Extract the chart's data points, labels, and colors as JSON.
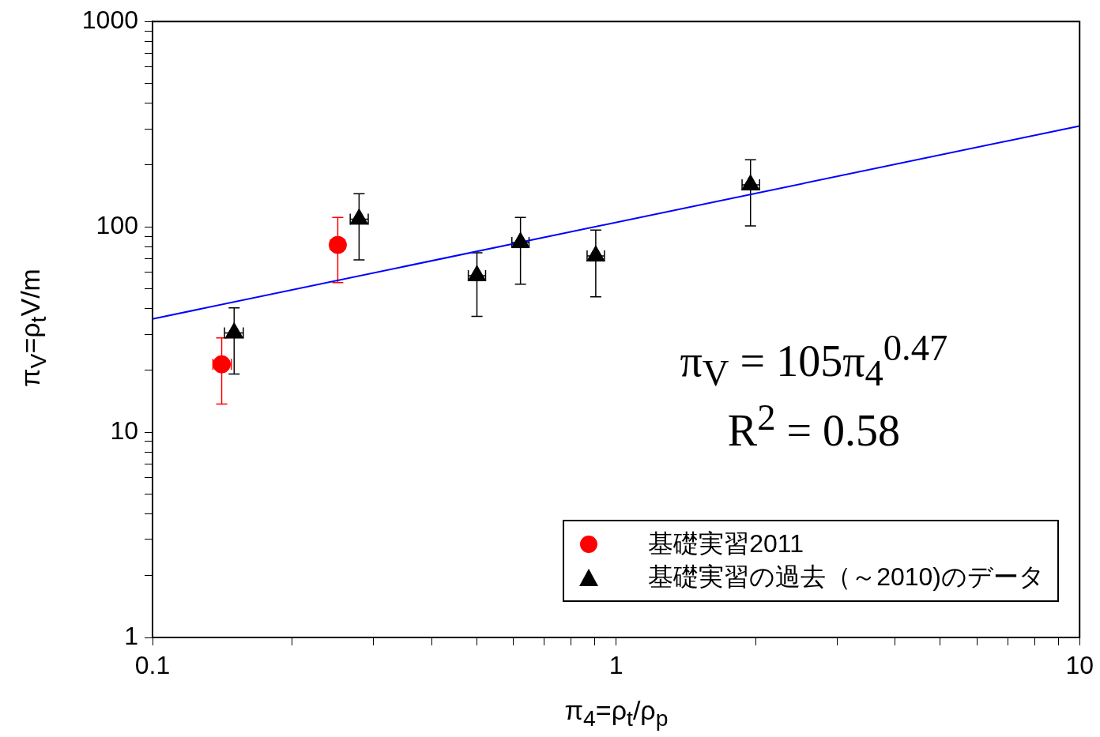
{
  "chart_data": {
    "type": "scatter",
    "xlabel": "π$_{4}$=ρ$_{t}$/ρ$_{p}$",
    "ylabel": "π$_{V}$=ρ$_{t}$V/m",
    "log": "xy",
    "grid": false,
    "legend": "bottom right",
    "xlim": [
      0.1,
      10
    ],
    "ylim": [
      1,
      1000
    ],
    "xticks": [
      0.1,
      {
        "value": 0.2,
        "label": null
      },
      {
        "value": 0.3,
        "label": null
      },
      {
        "value": 0.4,
        "label": null
      },
      {
        "value": 0.5,
        "label": null
      },
      {
        "value": 0.6,
        "label": null
      },
      {
        "value": 0.7,
        "label": null
      },
      {
        "value": 0.8,
        "label": null
      },
      {
        "value": 0.9,
        "label": null
      },
      1,
      {
        "value": 2,
        "label": null
      },
      {
        "value": 3,
        "label": null
      },
      {
        "value": 4,
        "label": null
      },
      {
        "value": 5,
        "label": null
      },
      {
        "value": 6,
        "label": null
      },
      {
        "value": 7,
        "label": null
      },
      {
        "value": 8,
        "label": null
      },
      {
        "value": 9,
        "label": null
      },
      10
    ],
    "yticks": [
      1,
      {
        "value": 2,
        "label": null
      },
      {
        "value": 3,
        "label": null
      },
      {
        "value": 4,
        "label": null
      },
      {
        "value": 5,
        "label": null
      },
      {
        "value": 6,
        "label": null
      },
      {
        "value": 7,
        "label": null
      },
      {
        "value": 8,
        "label": null
      },
      {
        "value": 9,
        "label": null
      },
      10,
      {
        "value": 20,
        "label": null
      },
      {
        "value": 30,
        "label": null
      },
      {
        "value": 40,
        "label": null
      },
      {
        "value": 50,
        "label": null
      },
      {
        "value": 60,
        "label": null
      },
      {
        "value": 70,
        "label": null
      },
      {
        "value": 80,
        "label": null
      },
      {
        "value": 90,
        "label": null
      },
      100,
      {
        "value": 200,
        "label": null
      },
      {
        "value": 300,
        "label": null
      },
      {
        "value": 400,
        "label": null
      },
      {
        "value": 500,
        "label": null
      },
      {
        "value": 600,
        "label": null
      },
      {
        "value": 700,
        "label": null
      },
      {
        "value": 800,
        "label": null
      },
      {
        "value": 900,
        "label": null
      },
      1000
    ],
    "annotations": [
      "π$_{V}$ = 105π$_{4}$$^{0.47}$",
      "R$^{2}$ = 0.58"
    ],
    "series": [
      {
        "name": "基礎実習2011",
        "marker": "circle",
        "color": "#ff0000",
        "x": [
          0.141,
          0.251
        ],
        "values": [
          21.4,
          81.6
        ],
        "errors": [
          [
            13.7,
            28.8
          ],
          [
            53.5,
            111
          ]
        ],
        "xerrors": [
          [
            0.135,
            0.148
          ],
          [
            0.242,
            0.26
          ]
        ]
      },
      {
        "name": "基礎実習の過去（～2010)のデータ",
        "marker": "triangle",
        "color": "#000000",
        "x": [
          0.15,
          0.279,
          0.501,
          0.622,
          0.904,
          1.95
        ],
        "values": [
          30.4,
          109,
          57.8,
          83.8,
          72.1,
          160
        ],
        "errors": [
          [
            19.2,
            40.3
          ],
          [
            69,
            145
          ],
          [
            36.6,
            74.8
          ],
          [
            52.5,
            111
          ],
          [
            45.6,
            96.5
          ],
          [
            101,
            212
          ]
        ],
        "xerrors": [
          [
            0.143,
            0.157
          ],
          [
            0.267,
            0.292
          ],
          [
            0.48,
            0.523
          ],
          [
            0.596,
            0.649
          ],
          [
            0.866,
            0.944
          ],
          [
            1.87,
            2.04
          ]
        ]
      },
      {
        "type": "line",
        "marker": "none",
        "color": "#0000ff",
        "x": [
          0.1,
          10
        ],
        "values": [
          35.6,
          310
        ]
      }
    ]
  }
}
